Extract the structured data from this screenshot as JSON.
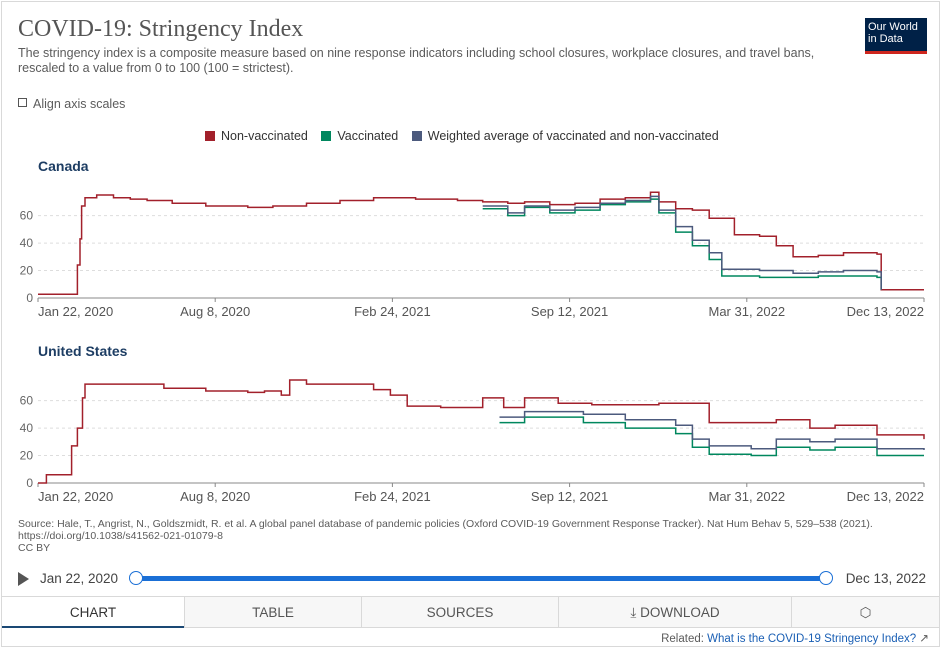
{
  "header": {
    "title": "COVID-19: Stringency Index",
    "subtitle": "The stringency index is a composite measure based on nine response indicators including school closures, workplace closures, and travel bans, rescaled to a value from 0 to 100 (100 = strictest).",
    "logo_line1": "Our World",
    "logo_line2": "in Data",
    "align_label": "Align axis scales"
  },
  "legend": [
    {
      "label": "Non-vaccinated",
      "color": "#a2202b"
    },
    {
      "label": "Vaccinated",
      "color": "#00875e"
    },
    {
      "label": "Weighted average of vaccinated and non-vaccinated",
      "color": "#4c5a7d"
    }
  ],
  "chart_data": [
    {
      "type": "line",
      "title": "Canada",
      "x_ticks": [
        "Jan 22, 2020",
        "Aug 8, 2020",
        "Feb 24, 2021",
        "Sep 12, 2021",
        "Mar 31, 2022",
        "Dec 13, 2022"
      ],
      "x_range": [
        0,
        1056
      ],
      "y_ticks": [
        "0",
        "20",
        "40",
        "60"
      ],
      "ylim": [
        0,
        75
      ],
      "series": [
        {
          "name": "Non-vaccinated",
          "color": "#a2202b",
          "points": [
            [
              0,
              2.78
            ],
            [
              45,
              2.78
            ],
            [
              47,
              24
            ],
            [
              50,
              43
            ],
            [
              52,
              67
            ],
            [
              56,
              73
            ],
            [
              70,
              75
            ],
            [
              90,
              73
            ],
            [
              110,
              72
            ],
            [
              130,
              71
            ],
            [
              160,
              69
            ],
            [
              200,
              67
            ],
            [
              250,
              66
            ],
            [
              280,
              67
            ],
            [
              320,
              69
            ],
            [
              360,
              71
            ],
            [
              400,
              73
            ],
            [
              450,
              72
            ],
            [
              500,
              71
            ],
            [
              530,
              70
            ],
            [
              560,
              69
            ],
            [
              580,
              70
            ],
            [
              610,
              68
            ],
            [
              640,
              69
            ],
            [
              670,
              72
            ],
            [
              700,
              73
            ],
            [
              730,
              77
            ],
            [
              740,
              70
            ],
            [
              760,
              65
            ],
            [
              780,
              64
            ],
            [
              800,
              58
            ],
            [
              830,
              46
            ],
            [
              860,
              45
            ],
            [
              880,
              38
            ],
            [
              900,
              30
            ],
            [
              930,
              31
            ],
            [
              960,
              33
            ],
            [
              980,
              33
            ],
            [
              1000,
              32
            ],
            [
              1005,
              6
            ],
            [
              1056,
              6
            ]
          ]
        },
        {
          "name": "Vaccinated",
          "color": "#00875e",
          "points": [
            [
              530,
              65
            ],
            [
              560,
              60
            ],
            [
              580,
              66
            ],
            [
              610,
              62
            ],
            [
              640,
              64
            ],
            [
              670,
              68
            ],
            [
              700,
              70
            ],
            [
              730,
              72
            ],
            [
              740,
              62
            ],
            [
              760,
              48
            ],
            [
              780,
              38
            ],
            [
              800,
              28
            ],
            [
              815,
              16
            ],
            [
              860,
              15
            ],
            [
              900,
              15
            ],
            [
              930,
              16
            ],
            [
              960,
              16
            ],
            [
              980,
              16
            ],
            [
              1000,
              15
            ],
            [
              1005,
              6
            ]
          ]
        },
        {
          "name": "Weighted average of vaccinated and non-vaccinated",
          "color": "#4c5a7d",
          "points": [
            [
              530,
              67
            ],
            [
              560,
              62
            ],
            [
              580,
              67
            ],
            [
              610,
              64
            ],
            [
              640,
              66
            ],
            [
              670,
              69
            ],
            [
              700,
              71
            ],
            [
              730,
              74
            ],
            [
              740,
              64
            ],
            [
              760,
              52
            ],
            [
              780,
              42
            ],
            [
              800,
              33
            ],
            [
              815,
              21
            ],
            [
              860,
              20
            ],
            [
              900,
              18
            ],
            [
              930,
              19
            ],
            [
              960,
              20
            ],
            [
              980,
              20
            ],
            [
              1000,
              19
            ],
            [
              1005,
              6
            ]
          ]
        }
      ]
    },
    {
      "type": "line",
      "title": "United States",
      "x_ticks": [
        "Jan 22, 2020",
        "Aug 8, 2020",
        "Feb 24, 2021",
        "Sep 12, 2021",
        "Mar 31, 2022",
        "Dec 13, 2022"
      ],
      "x_range": [
        0,
        1056
      ],
      "y_ticks": [
        "0",
        "20",
        "40",
        "60"
      ],
      "ylim": [
        0,
        75
      ],
      "series": [
        {
          "name": "Non-vaccinated",
          "color": "#a2202b",
          "points": [
            [
              0,
              0
            ],
            [
              10,
              6
            ],
            [
              30,
              6
            ],
            [
              40,
              27
            ],
            [
              47,
              40
            ],
            [
              53,
              62
            ],
            [
              56,
              72
            ],
            [
              130,
              72
            ],
            [
              150,
              69
            ],
            [
              200,
              67
            ],
            [
              250,
              66
            ],
            [
              270,
              67
            ],
            [
              290,
              64
            ],
            [
              300,
              75
            ],
            [
              320,
              72
            ],
            [
              360,
              72
            ],
            [
              400,
              68
            ],
            [
              420,
              64
            ],
            [
              440,
              56
            ],
            [
              480,
              55
            ],
            [
              530,
              62
            ],
            [
              555,
              55
            ],
            [
              580,
              62
            ],
            [
              620,
              58
            ],
            [
              660,
              57
            ],
            [
              700,
              57
            ],
            [
              740,
              58
            ],
            [
              780,
              58
            ],
            [
              800,
              44
            ],
            [
              850,
              44
            ],
            [
              880,
              46
            ],
            [
              920,
              40
            ],
            [
              950,
              42
            ],
            [
              980,
              42
            ],
            [
              1000,
              35
            ],
            [
              1056,
              32
            ]
          ]
        },
        {
          "name": "Vaccinated",
          "color": "#00875e",
          "points": [
            [
              550,
              44
            ],
            [
              580,
              48
            ],
            [
              620,
              48
            ],
            [
              650,
              44
            ],
            [
              700,
              40
            ],
            [
              740,
              40
            ],
            [
              760,
              36
            ],
            [
              780,
              26
            ],
            [
              800,
              21
            ],
            [
              850,
              20
            ],
            [
              880,
              26
            ],
            [
              920,
              24
            ],
            [
              950,
              26
            ],
            [
              980,
              26
            ],
            [
              1000,
              20
            ],
            [
              1056,
              20
            ]
          ]
        },
        {
          "name": "Weighted average of vaccinated and non-vaccinated",
          "color": "#4c5a7d",
          "points": [
            [
              550,
              48
            ],
            [
              580,
              52
            ],
            [
              620,
              52
            ],
            [
              650,
              50
            ],
            [
              700,
              46
            ],
            [
              740,
              46
            ],
            [
              760,
              42
            ],
            [
              780,
              32
            ],
            [
              800,
              27
            ],
            [
              850,
              25
            ],
            [
              880,
              32
            ],
            [
              920,
              30
            ],
            [
              950,
              32
            ],
            [
              980,
              32
            ],
            [
              1000,
              25
            ],
            [
              1056,
              24
            ]
          ]
        }
      ]
    }
  ],
  "footer": {
    "source": "Source: Hale, T., Angrist, N., Goldszmidt, R. et al. A global panel database of pandemic policies (Oxford COVID-19 Government Response Tracker). Nat Hum Behav 5, 529–538 (2021). https://doi.org/10.1038/s41562-021-01079-8",
    "license": "CC BY",
    "timeline_start": "Jan 22, 2020",
    "timeline_end": "Dec 13, 2022",
    "tabs": [
      "CHART",
      "TABLE",
      "SOURCES",
      "DOWNLOAD",
      ""
    ],
    "related_prefix": "Related: ",
    "related_link": "What is the COVID-19 Stringency Index?"
  }
}
